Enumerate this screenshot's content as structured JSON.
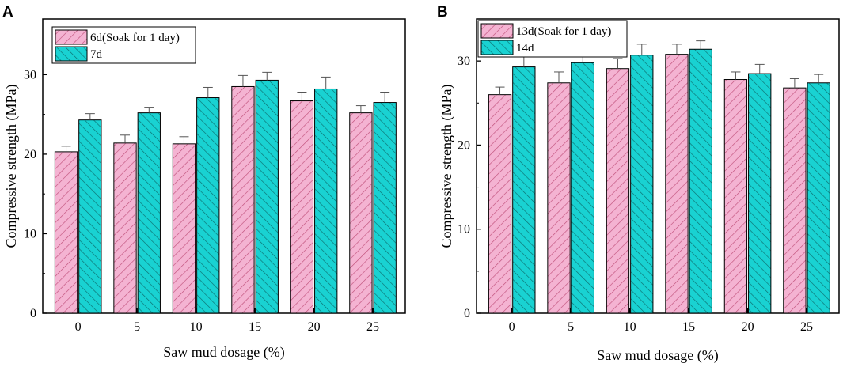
{
  "chart_data": [
    {
      "panel": "A",
      "type": "bar",
      "title": "",
      "xlabel": "Saw mud dosage (%)",
      "ylabel": "Compressive strength (MPa)",
      "ylim": [
        0,
        37
      ],
      "yticks": [
        0,
        10,
        20,
        30
      ],
      "categories": [
        "0",
        "5",
        "10",
        "15",
        "20",
        "25"
      ],
      "legend_position": "top-left",
      "series": [
        {
          "name": "6d(Soak for 1 day)",
          "color": "#f4b3d2",
          "hatch": "#c0507a",
          "values": [
            20.3,
            21.4,
            21.3,
            28.5,
            26.7,
            25.2
          ],
          "errors": [
            0.7,
            1.0,
            0.9,
            1.4,
            1.1,
            0.9
          ]
        },
        {
          "name": "7d",
          "color": "#19d2d2",
          "hatch": "#0e6f6f",
          "values": [
            24.3,
            25.2,
            27.1,
            29.3,
            28.2,
            26.5
          ],
          "errors": [
            0.8,
            0.7,
            1.3,
            1.0,
            1.5,
            1.3
          ]
        }
      ]
    },
    {
      "panel": "B",
      "type": "bar",
      "title": "",
      "xlabel": "Saw mud dosage (%)",
      "ylabel": "Compressive strength (MPa)",
      "ylim": [
        0,
        35
      ],
      "yticks": [
        0,
        10,
        20,
        30
      ],
      "categories": [
        "0",
        "5",
        "10",
        "15",
        "20",
        "25"
      ],
      "legend_position": "top-left",
      "series": [
        {
          "name": "13d(Soak for 1 day)",
          "color": "#f4b3d2",
          "hatch": "#c0507a",
          "values": [
            26.0,
            27.4,
            29.1,
            30.8,
            27.8,
            26.8
          ],
          "errors": [
            0.9,
            1.3,
            1.2,
            1.2,
            0.9,
            1.1
          ]
        },
        {
          "name": "14d",
          "color": "#19d2d2",
          "hatch": "#0e6f6f",
          "values": [
            29.3,
            29.8,
            30.7,
            31.4,
            28.5,
            27.4
          ],
          "errors": [
            1.2,
            0.7,
            1.3,
            1.0,
            1.1,
            1.0
          ]
        }
      ]
    }
  ]
}
